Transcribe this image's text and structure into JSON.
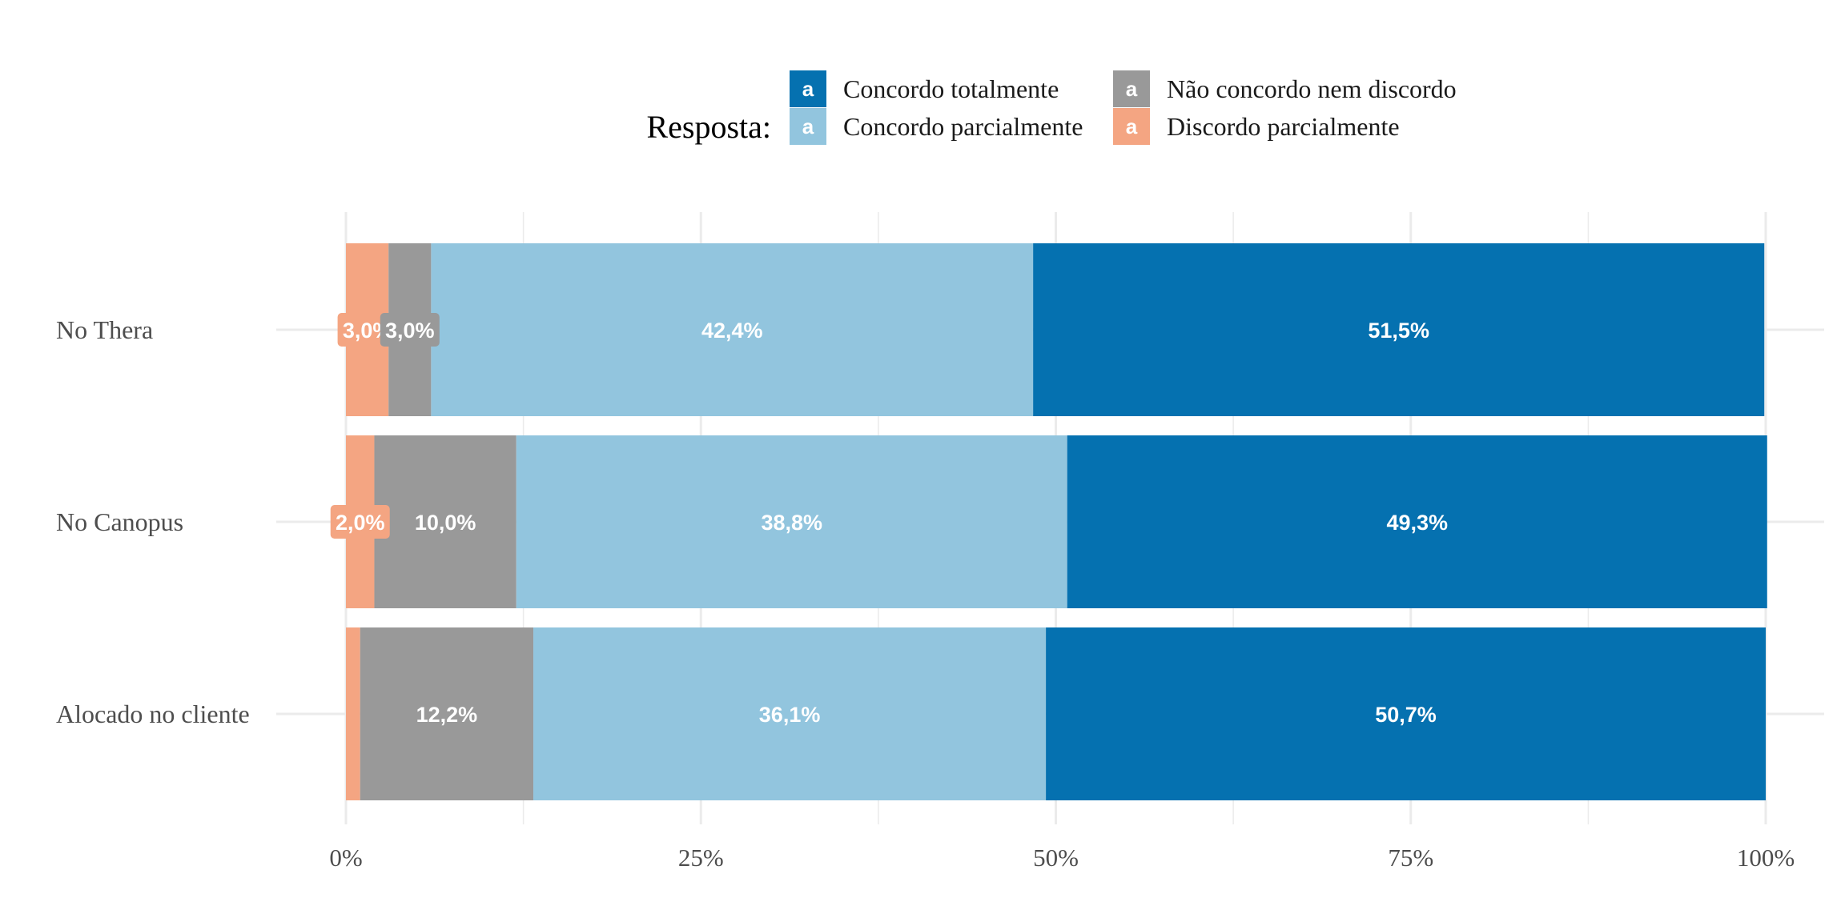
{
  "chart_data": {
    "type": "bar",
    "orientation": "horizontal",
    "stacked": true,
    "categories": [
      "No Thera",
      "No Canopus",
      "Alocado no cliente"
    ],
    "series": [
      {
        "name": "Discordo parcialmente",
        "color": "#f4a582",
        "values": [
          3.0,
          2.0,
          1.0
        ],
        "labels": [
          "3,0%",
          "2,0%",
          ""
        ]
      },
      {
        "name": "Não concordo nem discordo",
        "color": "#999999",
        "values": [
          3.0,
          10.0,
          12.2
        ],
        "labels": [
          "3,0%",
          "10,0%",
          "12,2%"
        ]
      },
      {
        "name": "Concordo parcialmente",
        "color": "#92c5de",
        "values": [
          42.4,
          38.8,
          36.1
        ],
        "labels": [
          "42,4%",
          "38,8%",
          "36,1%"
        ]
      },
      {
        "name": "Concordo totalmente",
        "color": "#0571b0",
        "values": [
          51.5,
          49.3,
          50.7
        ],
        "labels": [
          "51,5%",
          "49,3%",
          "50,7%"
        ]
      }
    ],
    "xlim": [
      0,
      100
    ],
    "xticks": [
      0,
      25,
      50,
      75,
      100
    ],
    "xtick_labels": [
      "0%",
      "25%",
      "50%",
      "75%",
      "100%"
    ],
    "grid": true,
    "legend": {
      "title": "Resposta:",
      "position": "top",
      "key_letter": "a",
      "entries": [
        "Concordo totalmente",
        "Concordo parcialmente",
        "Não concordo nem discordo",
        "Discordo parcialmente"
      ]
    }
  }
}
